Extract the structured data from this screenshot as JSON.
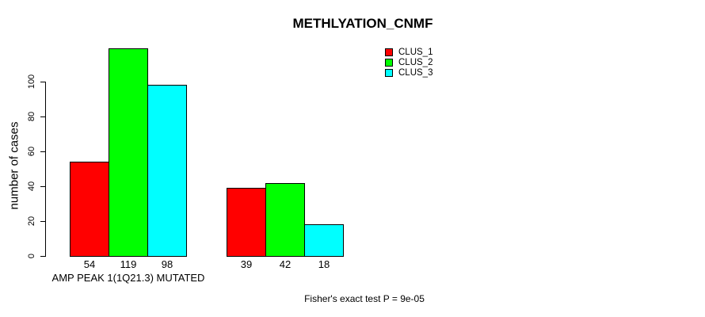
{
  "chart_data": {
    "type": "bar",
    "title": "METHLYATION_CNMF",
    "ylabel": "number of cases",
    "xlabel": "",
    "annotation": "Fisher's exact test P = 9e-05",
    "y_ticks": [
      0,
      20,
      40,
      60,
      80,
      100
    ],
    "ylim": [
      0,
      120
    ],
    "grid": false,
    "legend_position": "top-right",
    "bar_value_labels": true,
    "series": [
      {
        "name": "CLUS_1",
        "color": "#FF0000"
      },
      {
        "name": "CLUS_2",
        "color": "#00FF00"
      },
      {
        "name": "CLUS_3",
        "color": "#00FFFF"
      }
    ],
    "groups": [
      {
        "label": "AMP PEAK 1(1Q21.3) MUTATED",
        "values": [
          54,
          119,
          98
        ]
      },
      {
        "label": "",
        "values": [
          39,
          42,
          18
        ]
      }
    ]
  }
}
